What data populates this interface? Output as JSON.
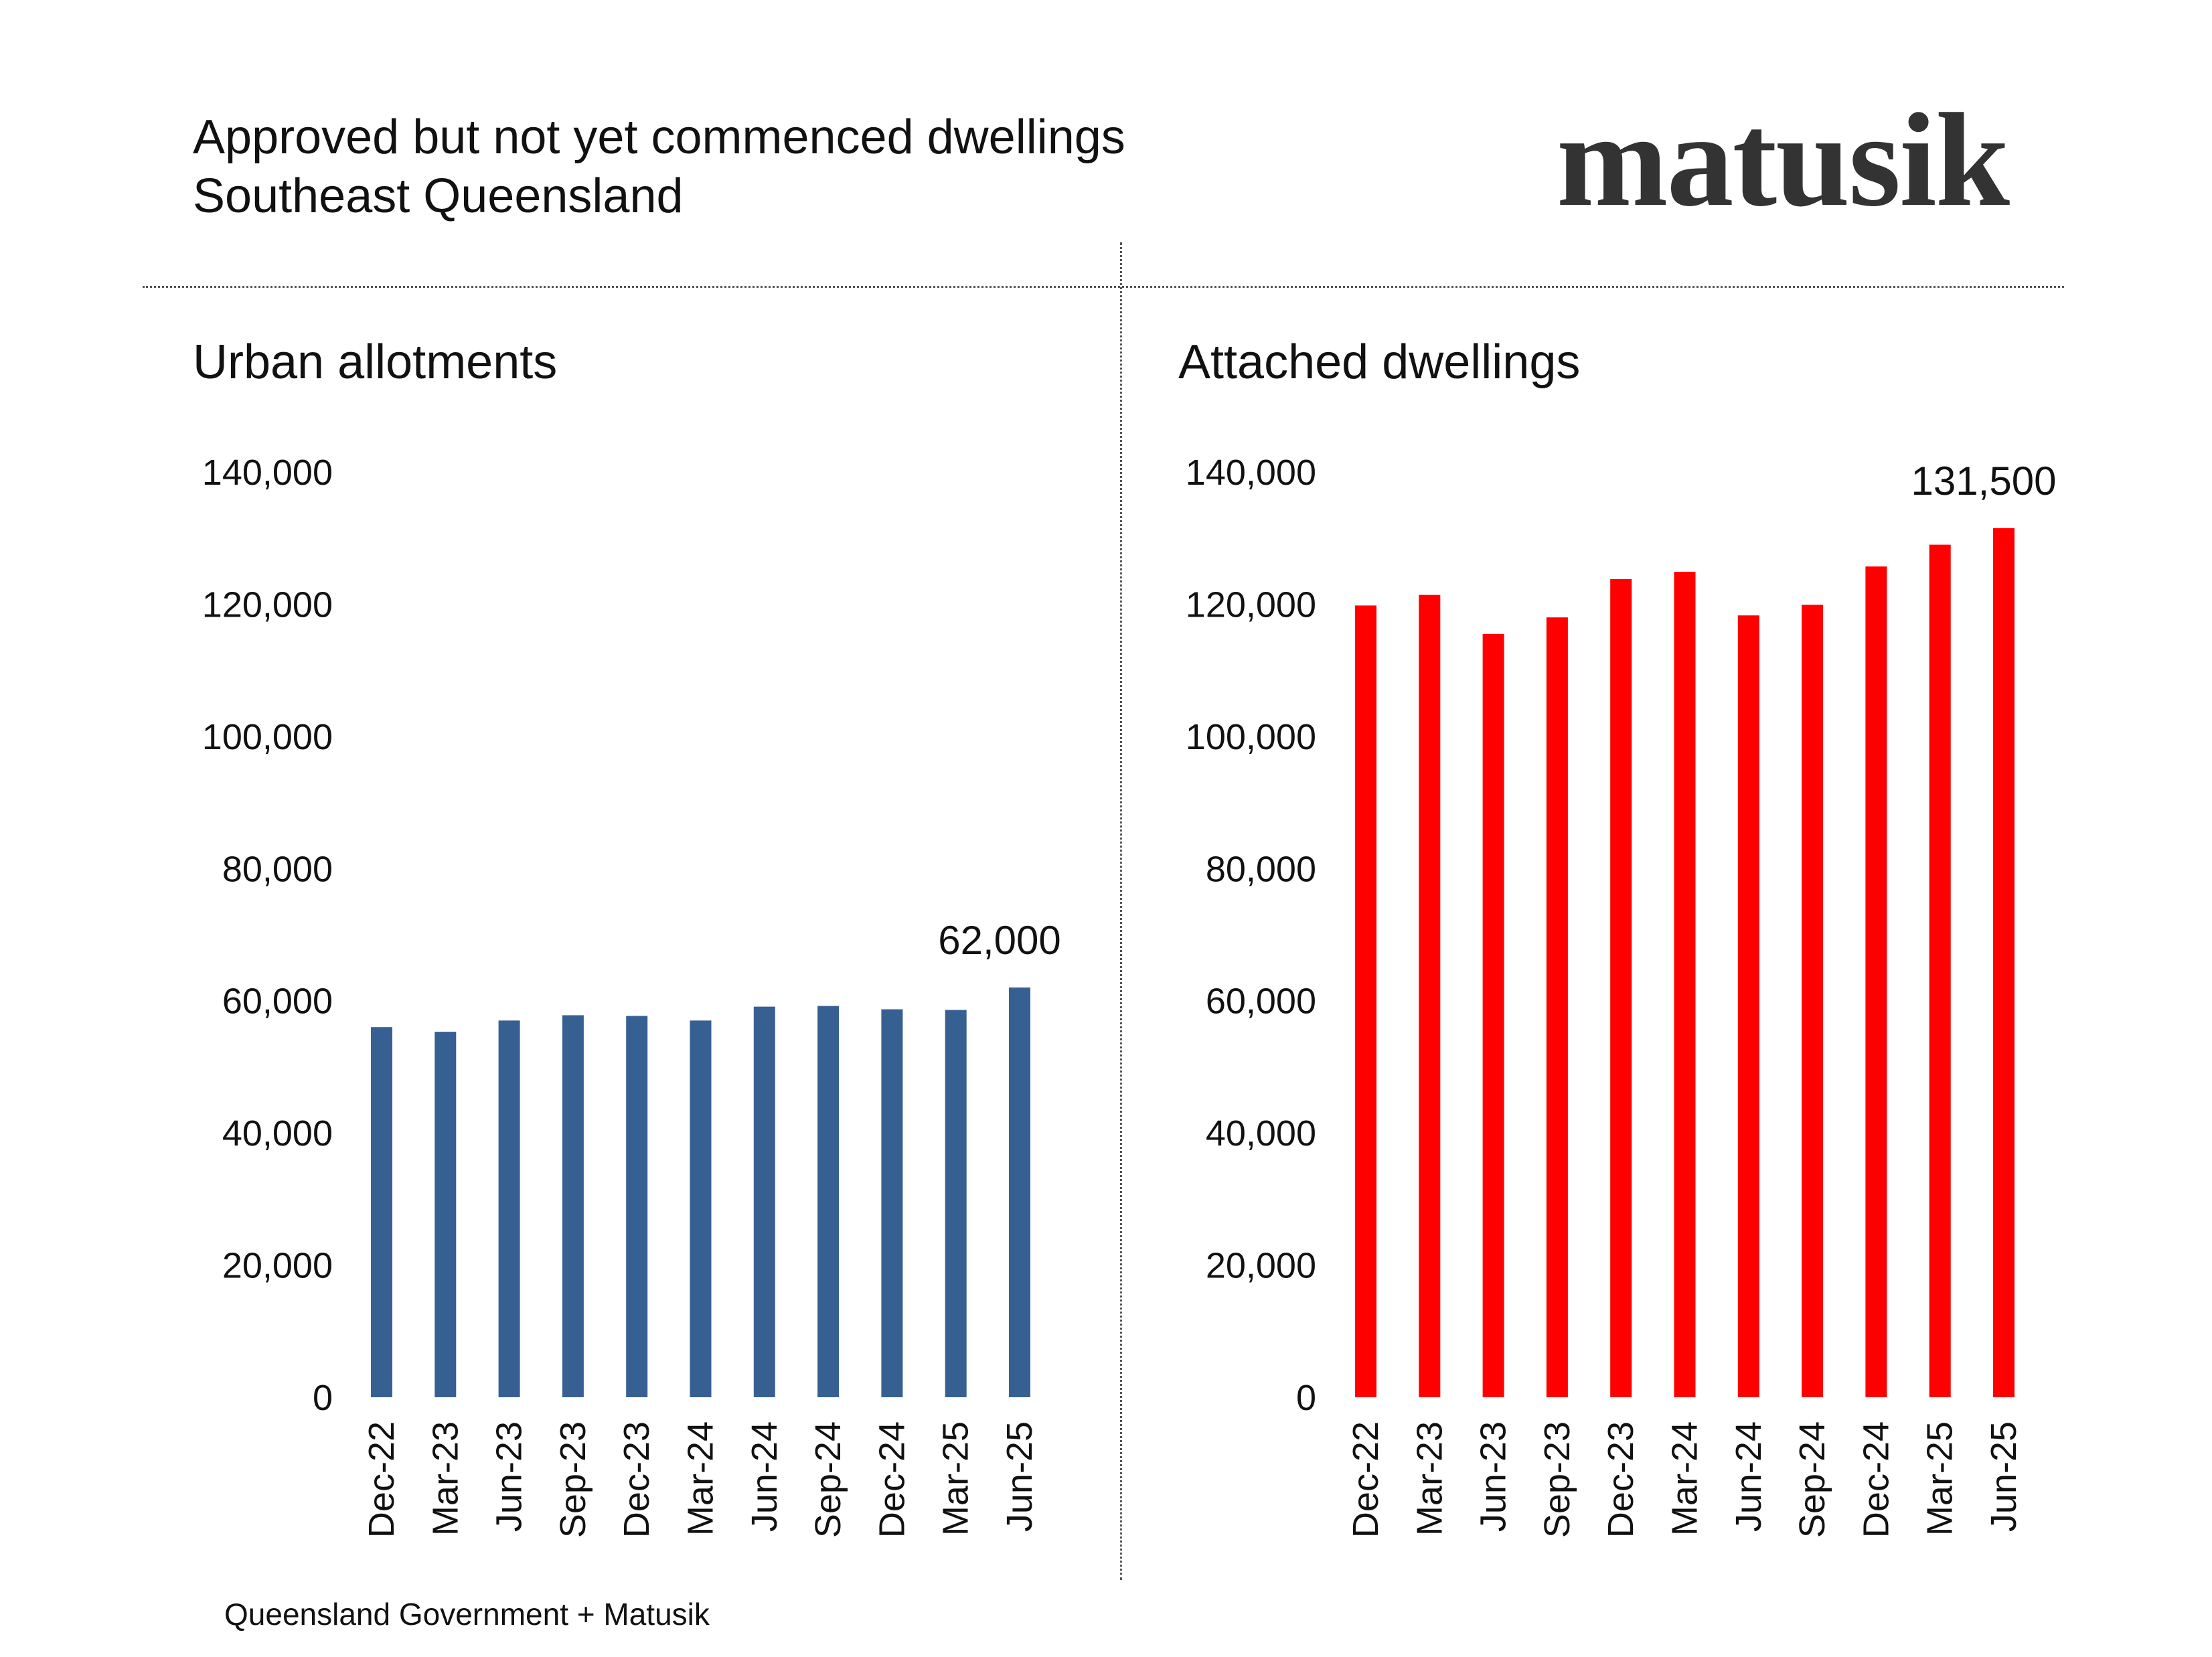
{
  "header": {
    "title": "Approved but not yet commenced dwellings",
    "subtitle": "Southeast Queensland",
    "logo": "matusik"
  },
  "source": "Queensland Government + Matusik",
  "chart_data": [
    {
      "type": "bar",
      "title": "Urban allotments",
      "color": "#376092",
      "categories": [
        "Dec-22",
        "Mar-23",
        "Jun-23",
        "Sep-23",
        "Dec-23",
        "Mar-24",
        "Jun-24",
        "Sep-24",
        "Dec-24",
        "Mar-25",
        "Jun-25"
      ],
      "values": [
        56000,
        55300,
        57000,
        57800,
        57700,
        57000,
        59100,
        59200,
        58700,
        58600,
        62000
      ],
      "ylim": [
        0,
        140000
      ],
      "yticks": [
        "0",
        "20,000",
        "40,000",
        "60,000",
        "80,000",
        "100,000",
        "120,000",
        "140,000"
      ],
      "annotation": {
        "index": 10,
        "text": "62,000"
      },
      "grid": false,
      "xlabel": "",
      "ylabel": ""
    },
    {
      "type": "bar",
      "title": "Attached dwellings",
      "color": "#ff0000",
      "categories": [
        "Dec-22",
        "Mar-23",
        "Jun-23",
        "Sep-23",
        "Dec-23",
        "Mar-24",
        "Jun-24",
        "Sep-24",
        "Dec-24",
        "Mar-25",
        "Jun-25"
      ],
      "values": [
        119800,
        121400,
        115500,
        118000,
        123800,
        124900,
        118300,
        119900,
        125700,
        129000,
        131500
      ],
      "ylim": [
        0,
        140000
      ],
      "yticks": [
        "0",
        "20,000",
        "40,000",
        "60,000",
        "80,000",
        "100,000",
        "120,000",
        "140,000"
      ],
      "annotation": {
        "index": 10,
        "text": "131,500"
      },
      "grid": false,
      "xlabel": "",
      "ylabel": ""
    }
  ]
}
